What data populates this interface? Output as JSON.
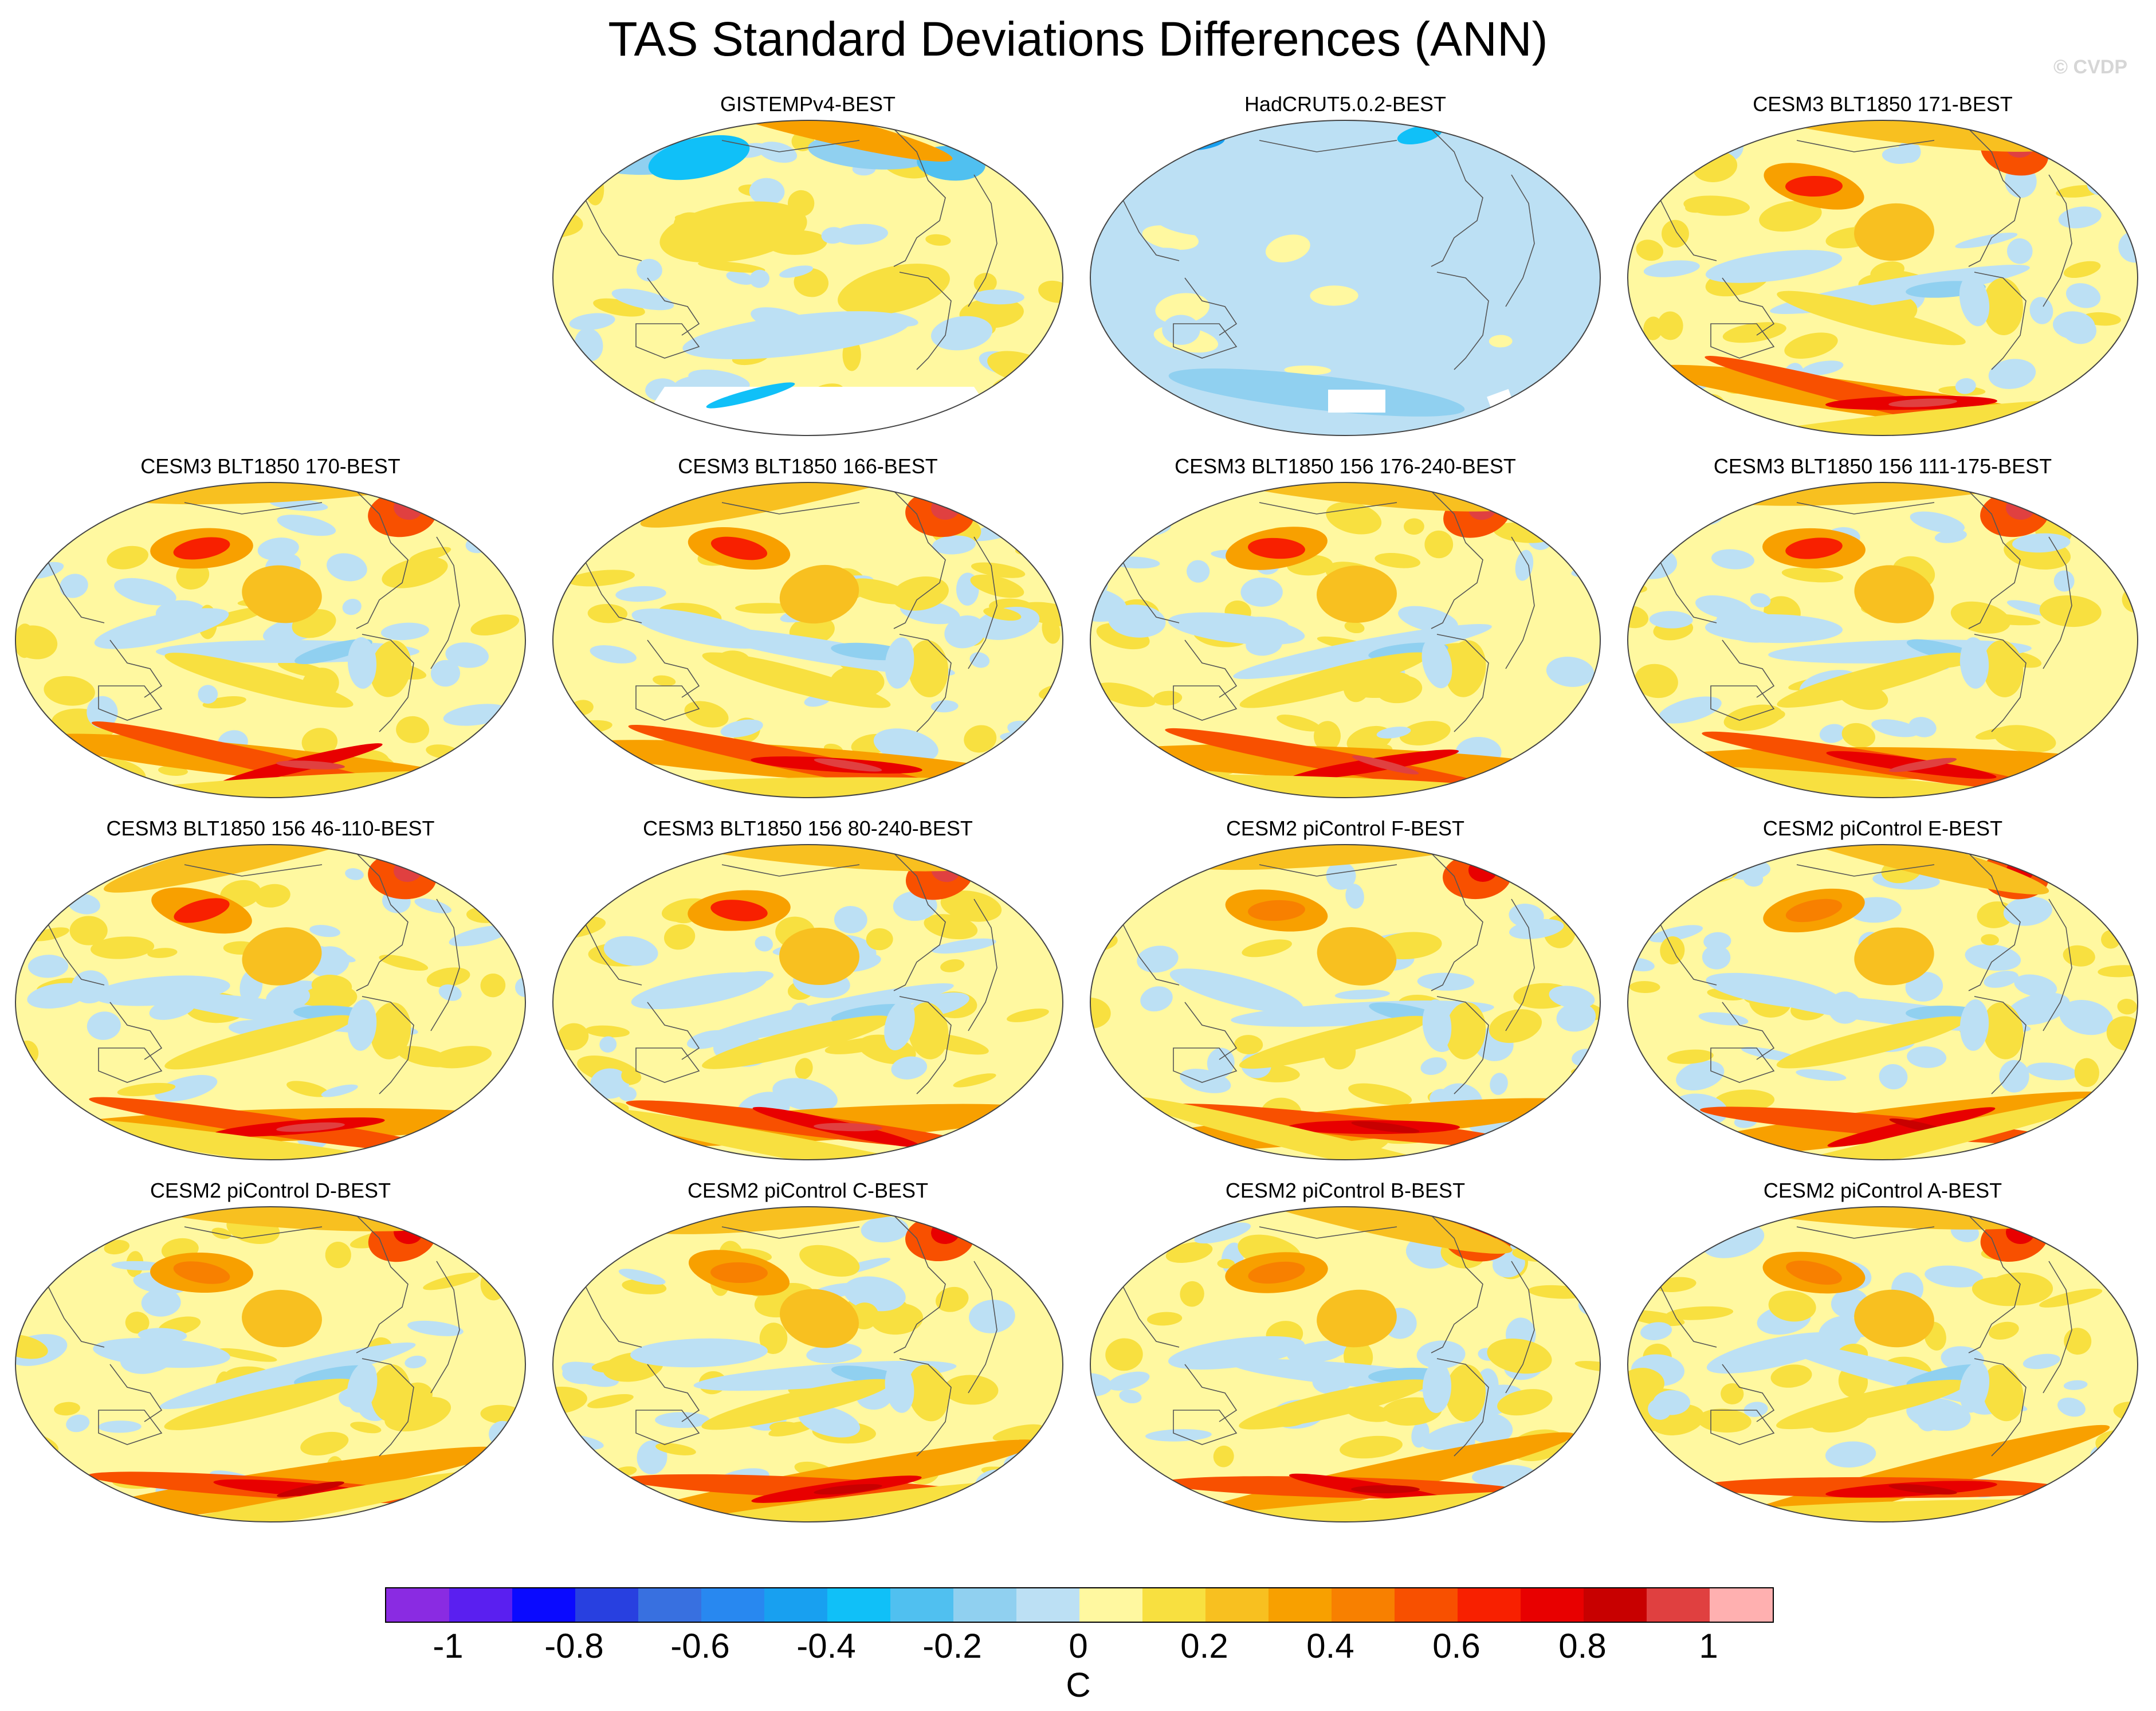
{
  "title": "TAS Standard Deviations Differences (ANN)",
  "watermark": "© CVDP",
  "panels": [
    {
      "label": "GISTEMPv4-BEST",
      "pattern": "gistemp"
    },
    {
      "label": "HadCRUT5.0.2-BEST",
      "pattern": "hadcrut"
    },
    {
      "label": "CESM3 BLT1850 171-BEST",
      "pattern": "model"
    },
    {
      "label": "CESM3 BLT1850 170-BEST",
      "pattern": "model"
    },
    {
      "label": "CESM3 BLT1850 166-BEST",
      "pattern": "model"
    },
    {
      "label": "CESM3 BLT1850 156 176-240-BEST",
      "pattern": "model"
    },
    {
      "label": "CESM3 BLT1850 156 111-175-BEST",
      "pattern": "model"
    },
    {
      "label": "CESM3 BLT1850 156 46-110-BEST",
      "pattern": "model"
    },
    {
      "label": "CESM3 BLT1850 156 80-240-BEST",
      "pattern": "model"
    },
    {
      "label": "CESM2 piControl F-BEST",
      "pattern": "cesm2"
    },
    {
      "label": "CESM2 piControl E-BEST",
      "pattern": "cesm2"
    },
    {
      "label": "CESM2 piControl D-BEST",
      "pattern": "cesm2"
    },
    {
      "label": "CESM2 piControl C-BEST",
      "pattern": "cesm2"
    },
    {
      "label": "CESM2 piControl B-BEST",
      "pattern": "cesm2"
    },
    {
      "label": "CESM2 piControl A-BEST",
      "pattern": "cesm2"
    }
  ],
  "colorbar": {
    "unit": "C",
    "ticks": [
      "-1",
      "-0.8",
      "-0.6",
      "-0.4",
      "-0.2",
      "0",
      "0.2",
      "0.4",
      "0.6",
      "0.8",
      "1"
    ],
    "colors": [
      "#8a2be2",
      "#5a1ff0",
      "#0a0aff",
      "#2840e0",
      "#3870e0",
      "#2888f0",
      "#18a0f0",
      "#10c0f8",
      "#50c0f0",
      "#90d0f0",
      "#bce0f4",
      "#fff8a0",
      "#f8e040",
      "#f8c020",
      "#f8a000",
      "#f88000",
      "#f85000",
      "#f82000",
      "#e80000",
      "#c80000",
      "#e04040",
      "#ffb0b0"
    ]
  },
  "colors": {
    "land_outline": "#555555",
    "neutral_warm": "#fff8a0",
    "neutral_cool": "#bce0f4"
  }
}
